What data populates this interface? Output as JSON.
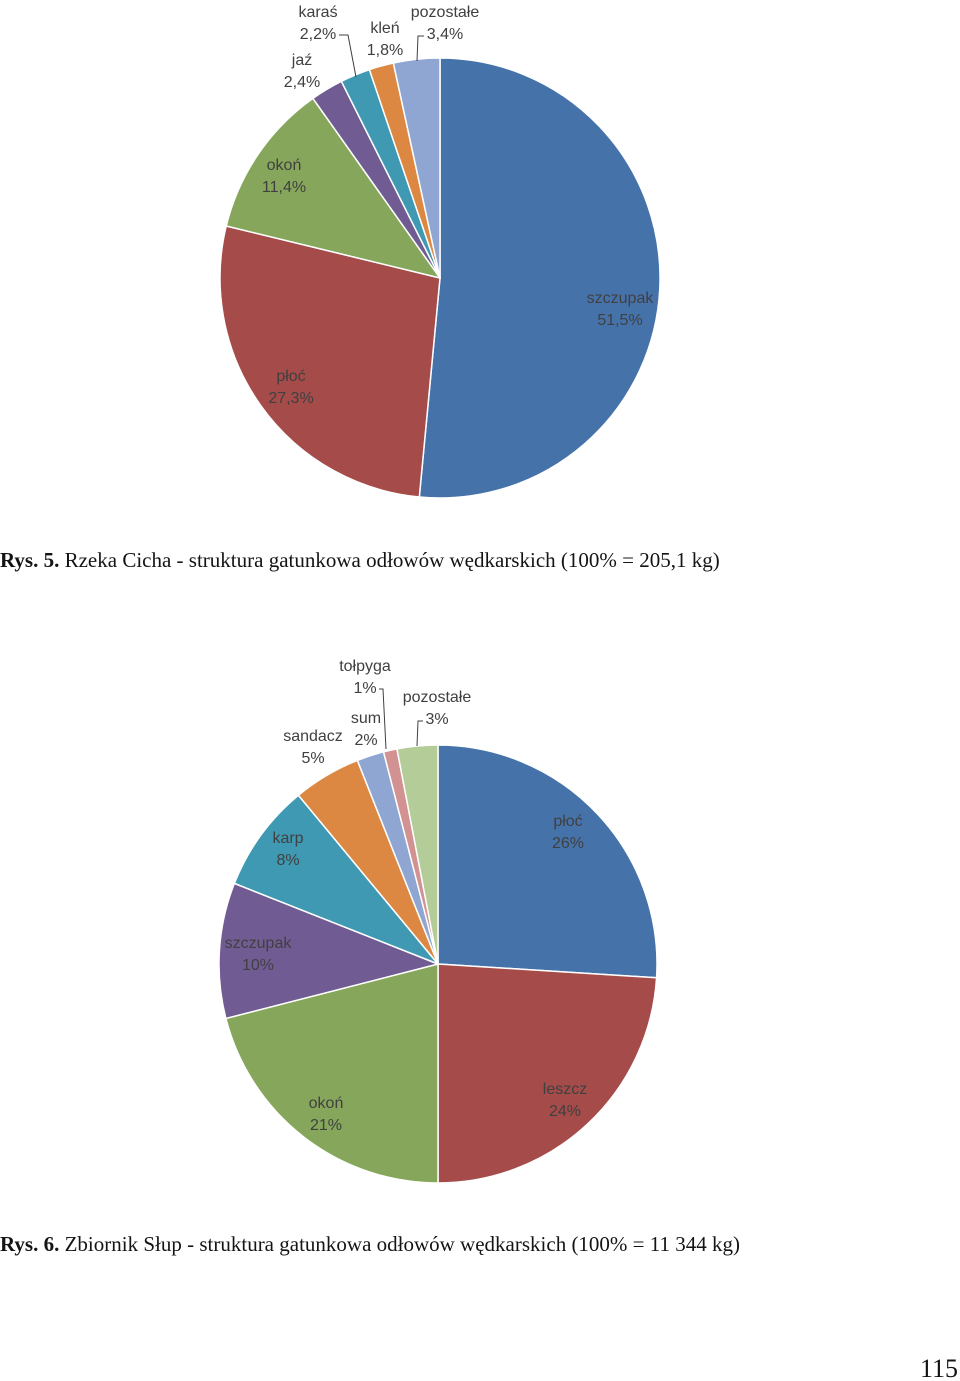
{
  "page_number": "115",
  "chart_data": [
    {
      "type": "pie",
      "caption_number": "Rys. 5.",
      "caption_text": "Rzeka Cicha - struktura gatunkowa odłowów wędkarskich (100% = 205,1 kg)",
      "categories": [
        "szczupak",
        "płoć",
        "okoń",
        "jaź",
        "karaś",
        "kleń",
        "pozostałe"
      ],
      "values": [
        51.5,
        27.3,
        11.4,
        2.4,
        2.2,
        1.8,
        3.4
      ],
      "value_labels": [
        "51,5%",
        "27,3%",
        "11,4%",
        "2,4%",
        "2,2%",
        "1,8%",
        "3,4%"
      ],
      "colors": [
        "#4672AA",
        "#A54B4A",
        "#86A75B",
        "#705B93",
        "#3F99B3",
        "#DC8843",
        "#8EA6D1"
      ],
      "legend": "none"
    },
    {
      "type": "pie",
      "caption_number": "Rys. 6.",
      "caption_text": "Zbiornik Słup - struktura gatunkowa odłowów wędkarskich (100% = 11 344 kg)",
      "categories": [
        "płoć",
        "leszcz",
        "okoń",
        "szczupak",
        "karp",
        "sandacz",
        "sum",
        "tołpyga",
        "pozostałe"
      ],
      "values": [
        26,
        24,
        21,
        10,
        8,
        5,
        2,
        1,
        3
      ],
      "value_labels": [
        "26%",
        "24%",
        "21%",
        "10%",
        "8%",
        "5%",
        "2%",
        "1%",
        "3%"
      ],
      "colors": [
        "#4672AA",
        "#A54B4A",
        "#86A75B",
        "#705B93",
        "#3F99B3",
        "#DC8843",
        "#8EA6D1",
        "#D19291",
        "#B3CC98"
      ],
      "legend": "none"
    }
  ]
}
